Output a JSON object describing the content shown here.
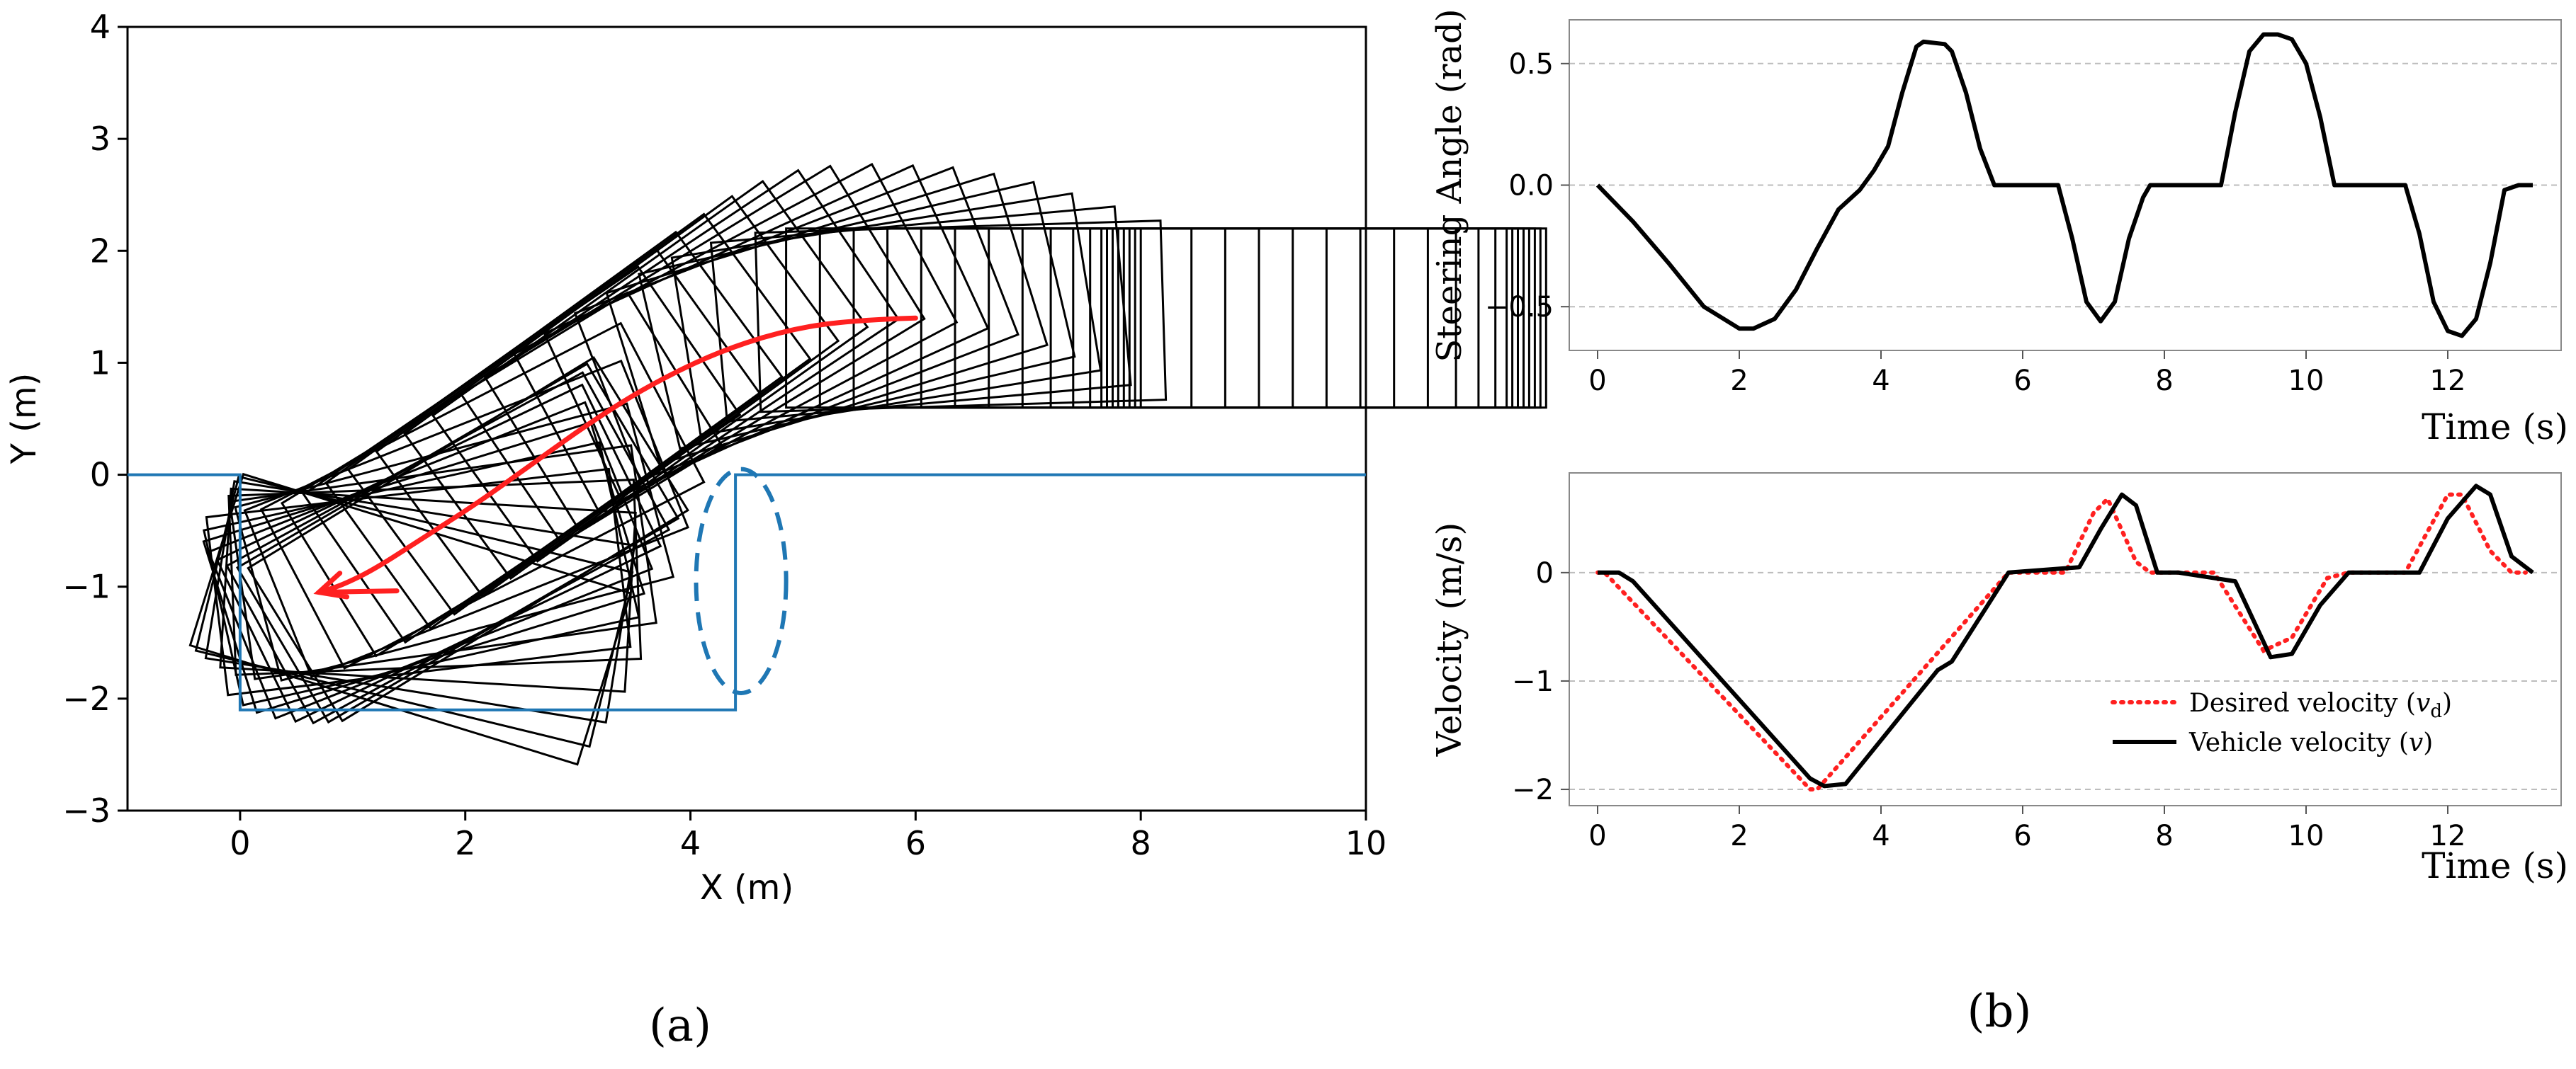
{
  "chart_data": [
    {
      "id": "a",
      "type": "line",
      "panel_label": "(a)",
      "xlabel": "X (m)",
      "ylabel": "Y (m)",
      "xlim": [
        -1,
        10
      ],
      "ylim": [
        -3,
        4
      ],
      "xticks": [
        0,
        2,
        4,
        6,
        8,
        10
      ],
      "yticks": [
        -3,
        -2,
        -1,
        0,
        1,
        2,
        3,
        4
      ],
      "tick_labels_x": [
        "0",
        "2",
        "4",
        "6",
        "8",
        "10"
      ],
      "tick_labels_y": [
        "−3",
        "−2",
        "−1",
        "0",
        "1",
        "2",
        "3",
        "4"
      ],
      "grid": false,
      "colors": {
        "boundary": "#1f77b4",
        "path": "#ff2020",
        "vehicle": "#000000",
        "axes": "#000000"
      },
      "parking_boundary": [
        [
          -1,
          0
        ],
        [
          0,
          0
        ],
        [
          0,
          -2.1
        ],
        [
          4.4,
          -2.1
        ],
        [
          4.4,
          0
        ],
        [
          10,
          0
        ]
      ],
      "reference_path": [
        [
          6.0,
          1.4
        ],
        [
          5.4,
          1.38
        ],
        [
          4.8,
          1.28
        ],
        [
          4.2,
          1.08
        ],
        [
          3.6,
          0.78
        ],
        [
          3.1,
          0.46
        ],
        [
          2.6,
          0.1
        ],
        [
          2.1,
          -0.26
        ],
        [
          1.6,
          -0.58
        ],
        [
          1.2,
          -0.84
        ],
        [
          0.9,
          -0.99
        ],
        [
          0.7,
          -1.05
        ]
      ],
      "vehicle_footprint": {
        "length": 3.6,
        "width": 1.6,
        "rear_overhang": 0.95,
        "front_overhang": 0.05
      },
      "vehicle_poses": [
        [
          8.95,
          1.4,
          0
        ],
        [
          8.9,
          1.4,
          0
        ],
        [
          8.85,
          1.4,
          0
        ],
        [
          8.8,
          1.4,
          0
        ],
        [
          8.75,
          1.4,
          0
        ],
        [
          8.7,
          1.4,
          0
        ],
        [
          8.65,
          1.4,
          0
        ],
        [
          8.6,
          1.4,
          0
        ],
        [
          8.5,
          1.4,
          0
        ],
        [
          8.35,
          1.4,
          0
        ],
        [
          8.15,
          1.4,
          0
        ],
        [
          7.9,
          1.4,
          0
        ],
        [
          7.6,
          1.4,
          0
        ],
        [
          7.3,
          1.4,
          0
        ],
        [
          7.0,
          1.4,
          0
        ],
        [
          6.7,
          1.4,
          0
        ],
        [
          6.4,
          1.4,
          0
        ],
        [
          6.1,
          1.4,
          0
        ],
        [
          5.8,
          1.4,
          0
        ],
        [
          5.55,
          1.39,
          0.03
        ],
        [
          5.2,
          1.36,
          0.09
        ],
        [
          4.9,
          1.3,
          0.16
        ],
        [
          4.65,
          1.23,
          0.23
        ],
        [
          4.4,
          1.14,
          0.3
        ],
        [
          4.15,
          1.04,
          0.37
        ],
        [
          3.9,
          0.93,
          0.43
        ],
        [
          3.65,
          0.82,
          0.49
        ],
        [
          3.4,
          0.69,
          0.55
        ],
        [
          3.2,
          0.58,
          0.59
        ],
        [
          2.95,
          0.43,
          0.62
        ],
        [
          2.7,
          0.28,
          0.63
        ],
        [
          2.45,
          0.12,
          0.63
        ],
        [
          2.2,
          -0.04,
          0.63
        ],
        [
          2.0,
          -0.17,
          0.62
        ],
        [
          1.8,
          -0.3,
          0.6
        ],
        [
          1.6,
          -0.44,
          0.55
        ],
        [
          1.4,
          -0.58,
          0.48
        ],
        [
          1.22,
          -0.71,
          0.38
        ],
        [
          1.08,
          -0.82,
          0.26
        ],
        [
          0.96,
          -0.9,
          0.14
        ],
        [
          0.88,
          -0.95,
          0.04
        ],
        [
          0.82,
          -0.98,
          -0.06
        ],
        [
          0.76,
          -1.0,
          -0.16
        ],
        [
          0.72,
          -1.02,
          -0.24
        ],
        [
          0.7,
          -1.04,
          -0.3
        ],
        [
          0.74,
          -1.06,
          0.12
        ],
        [
          0.78,
          -1.07,
          0.22
        ],
        [
          0.82,
          -1.08,
          0.3
        ],
        [
          0.9,
          -1.08,
          0.38
        ],
        [
          1.0,
          -1.07,
          0.45
        ],
        [
          1.1,
          -1.06,
          0.5
        ],
        [
          1.2,
          -1.04,
          0.53
        ],
        [
          1.3,
          -1.02,
          0.55
        ]
      ],
      "recovery_arc": {
        "center": [
          4.45,
          -0.95
        ],
        "rx": 0.4,
        "ry": 1.0,
        "style": "dashed"
      }
    },
    {
      "id": "b-top",
      "type": "line",
      "xlabel": "Time (s)",
      "ylabel": "Steering Angle (rad)",
      "xlim": [
        -0.4,
        13.6
      ],
      "ylim": [
        -0.68,
        0.68
      ],
      "xticks": [
        0,
        2,
        4,
        6,
        8,
        10,
        12
      ],
      "yticks": [
        -0.5,
        0.0,
        0.5
      ],
      "tick_labels_x": [
        "0",
        "2",
        "4",
        "6",
        "8",
        "10",
        "12"
      ],
      "tick_labels_y": [
        "−0.5",
        "0.0",
        "0.5"
      ],
      "grid": "horizontal-dashed",
      "colors": {
        "line": "#000000",
        "grid": "#bdbdbd"
      },
      "series": [
        {
          "name": "Steering angle",
          "x": [
            0,
            0.5,
            1.0,
            1.5,
            2.0,
            2.2,
            2.5,
            2.8,
            3.1,
            3.4,
            3.7,
            3.9,
            4.1,
            4.3,
            4.5,
            4.6,
            4.9,
            5.0,
            5.2,
            5.4,
            5.6,
            6.5,
            6.7,
            6.9,
            7.1,
            7.3,
            7.5,
            7.7,
            7.8,
            8.8,
            9.0,
            9.2,
            9.4,
            9.6,
            9.8,
            10.0,
            10.2,
            10.4,
            11.4,
            11.6,
            11.8,
            12.0,
            12.2,
            12.4,
            12.6,
            12.8,
            13.0,
            13.2
          ],
          "y": [
            0.0,
            -0.15,
            -0.32,
            -0.5,
            -0.59,
            -0.59,
            -0.55,
            -0.43,
            -0.26,
            -0.1,
            -0.02,
            0.06,
            0.16,
            0.38,
            0.57,
            0.59,
            0.58,
            0.55,
            0.38,
            0.15,
            0.0,
            0.0,
            -0.22,
            -0.48,
            -0.56,
            -0.48,
            -0.22,
            -0.05,
            0.0,
            0.0,
            0.3,
            0.55,
            0.62,
            0.62,
            0.6,
            0.5,
            0.28,
            0.0,
            0.0,
            -0.2,
            -0.48,
            -0.6,
            -0.62,
            -0.55,
            -0.32,
            -0.02,
            0.0,
            0.0
          ]
        }
      ]
    },
    {
      "id": "b-bottom",
      "type": "line",
      "panel_label": "(b)",
      "xlabel": "Time (s)",
      "ylabel": "Velocity (m/s)",
      "xlim": [
        -0.4,
        13.6
      ],
      "ylim": [
        -2.15,
        0.92
      ],
      "xticks": [
        0,
        2,
        4,
        6,
        8,
        10,
        12
      ],
      "yticks": [
        -2,
        -1,
        0
      ],
      "tick_labels_x": [
        "0",
        "2",
        "4",
        "6",
        "8",
        "10",
        "12"
      ],
      "tick_labels_y": [
        "−2",
        "−1",
        "0"
      ],
      "grid": "horizontal-dashed",
      "legend_position": "bottom-right",
      "colors": {
        "desired": "#ff2020",
        "vehicle": "#000000",
        "grid": "#bdbdbd"
      },
      "series": [
        {
          "name": "Desired velocity",
          "legend_label": "Desired velocity (",
          "legend_math": "v",
          "legend_sub": "d",
          "legend_close": ")",
          "style": "dotted",
          "x": [
            0,
            0.1,
            3.0,
            3.1,
            5.8,
            6.6,
            7.0,
            7.2,
            7.6,
            7.8,
            8.7,
            9.4,
            9.8,
            10.3,
            10.6,
            11.4,
            12.0,
            12.2,
            12.6,
            12.9,
            13.1
          ],
          "y": [
            0.0,
            0.0,
            -2.0,
            -2.0,
            0.0,
            0.0,
            0.55,
            0.68,
            0.1,
            0.0,
            0.0,
            -0.72,
            -0.6,
            -0.05,
            0.0,
            0.0,
            0.72,
            0.72,
            0.2,
            0.0,
            0.0
          ]
        },
        {
          "name": "Vehicle velocity",
          "legend_label": "Vehicle velocity (",
          "legend_math": "v",
          "legend_sub": "",
          "legend_close": ")",
          "style": "solid",
          "x": [
            0,
            0.3,
            0.5,
            3.0,
            3.2,
            3.5,
            4.8,
            5.0,
            5.8,
            6.8,
            7.1,
            7.4,
            7.6,
            7.9,
            8.2,
            9.0,
            9.5,
            9.8,
            10.2,
            10.6,
            11.6,
            12.0,
            12.4,
            12.6,
            12.9,
            13.2
          ],
          "y": [
            0.0,
            0.0,
            -0.08,
            -1.9,
            -1.97,
            -1.95,
            -0.9,
            -0.82,
            0.0,
            0.05,
            0.4,
            0.72,
            0.62,
            0.0,
            0.0,
            -0.08,
            -0.78,
            -0.75,
            -0.3,
            0.0,
            0.0,
            0.5,
            0.8,
            0.72,
            0.15,
            0.0
          ]
        }
      ]
    }
  ]
}
